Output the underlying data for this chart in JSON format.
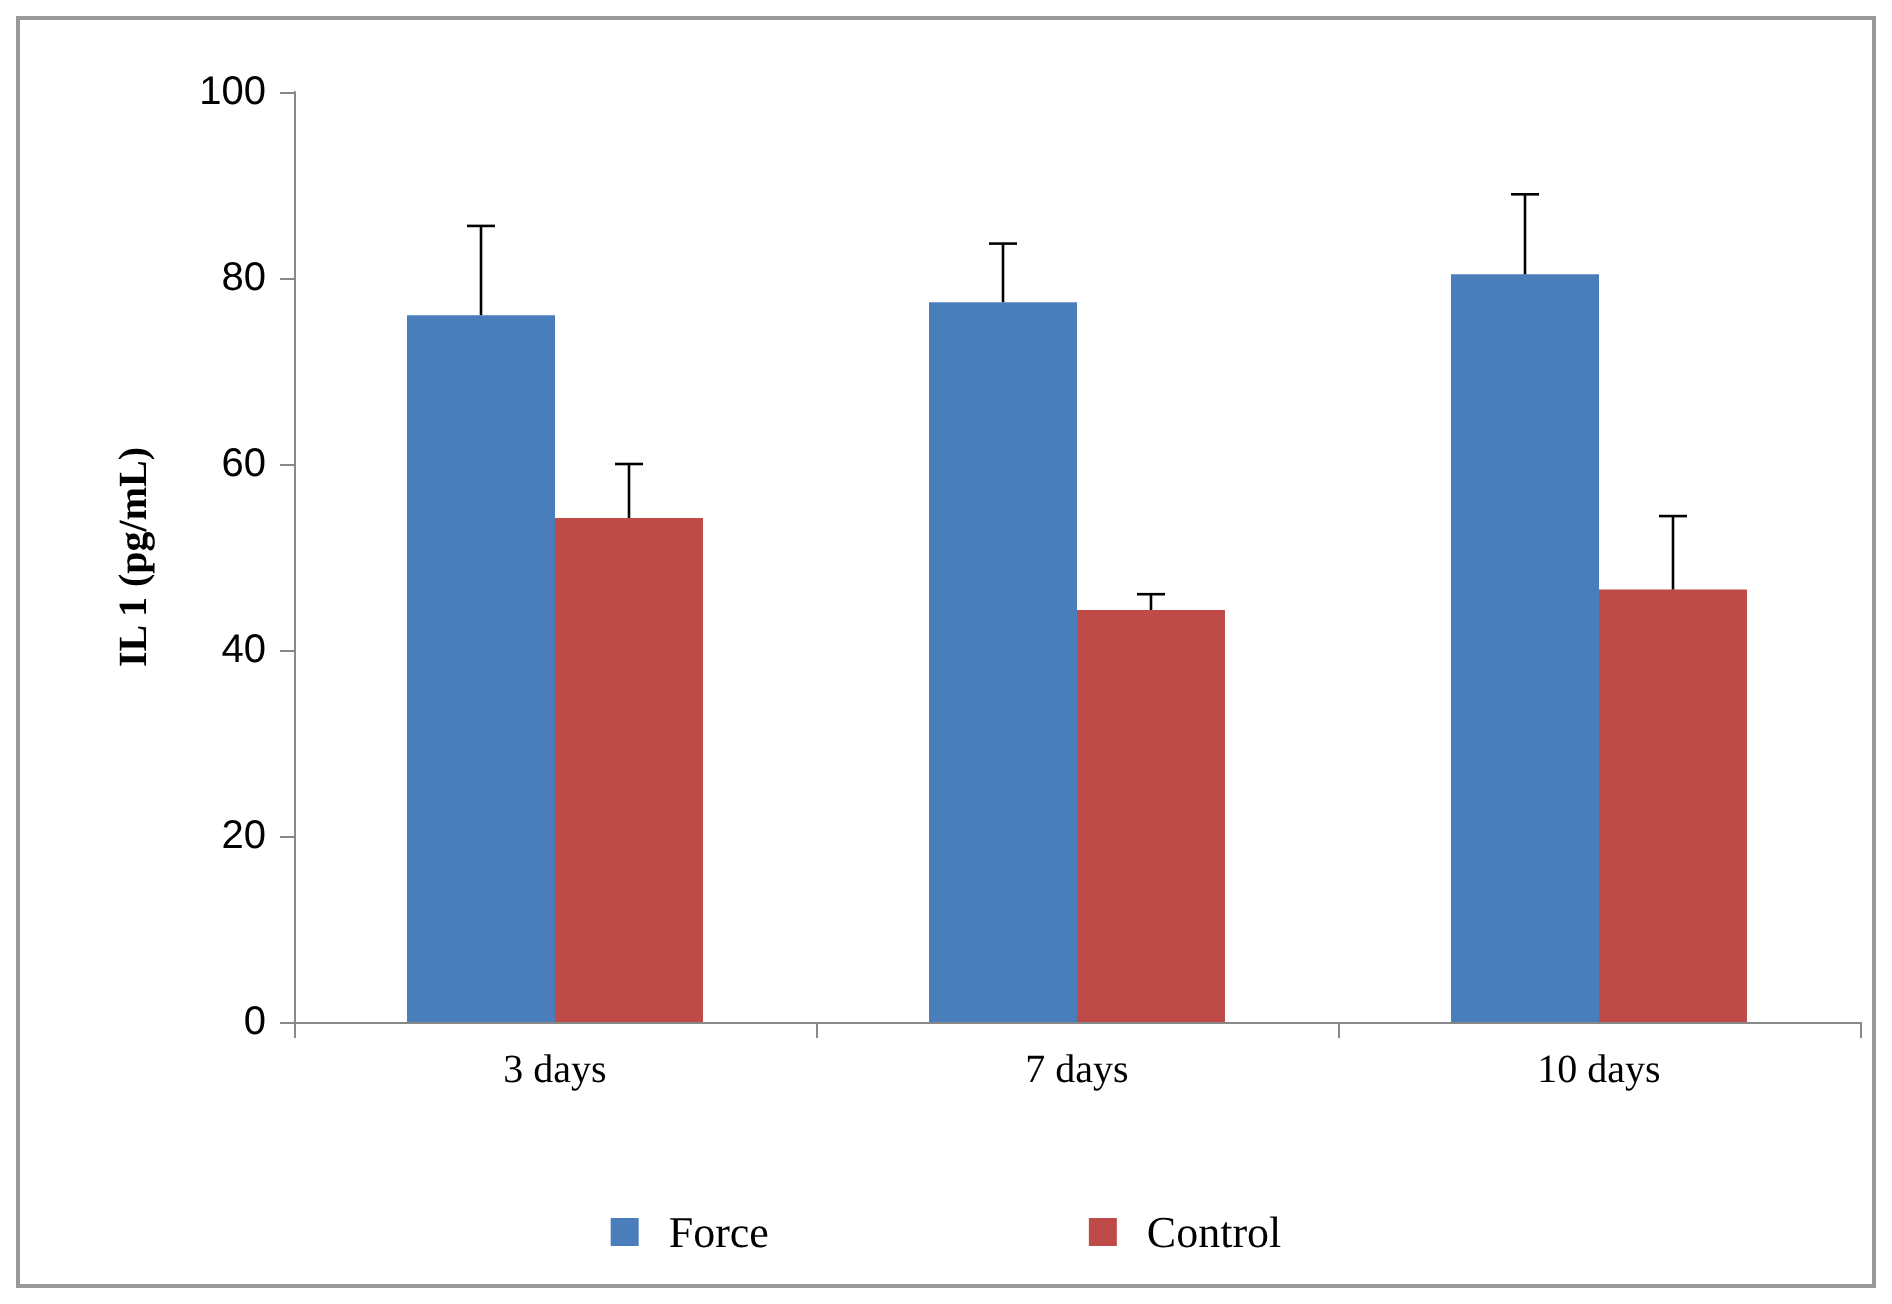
{
  "chart_data": {
    "type": "bar",
    "ylabel": "IL 1 (pg/mL)",
    "categories": [
      "3 days",
      "7 days",
      "10 days"
    ],
    "series": [
      {
        "name": "Force",
        "color": "#4a7ebb",
        "values": [
          76,
          77.4,
          80.4
        ],
        "errors": [
          [
            76,
            85.6
          ],
          [
            77.4,
            83.7
          ],
          [
            80.4,
            89
          ]
        ]
      },
      {
        "name": "Control",
        "color": "#be4b48",
        "values": [
          54.2,
          44.3,
          46.5
        ],
        "errors": [
          [
            54.2,
            60
          ],
          [
            44.3,
            46
          ],
          [
            46.5,
            54.4
          ]
        ]
      }
    ],
    "ylim": [
      0,
      100
    ],
    "yticks": [
      0,
      20,
      40,
      60,
      80,
      100
    ],
    "grid": false,
    "legend": "bottom"
  }
}
